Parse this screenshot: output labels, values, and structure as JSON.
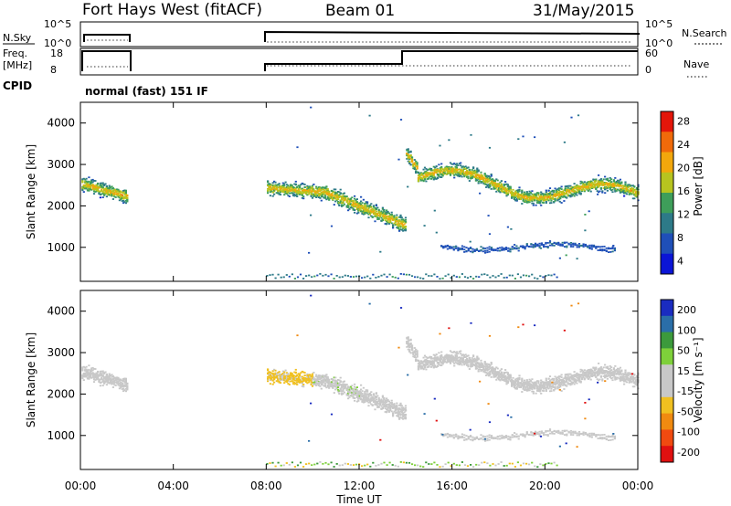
{
  "header": {
    "station": "Fort Hays West (fitACF)",
    "beam": "Beam 01",
    "date": "31/May/2015"
  },
  "top_panels": {
    "nsky_label": "N.Sky",
    "nsky_ticks": [
      "10^5",
      "10^0"
    ],
    "nsearch_label": "N.Search",
    "nsearch_ticks": [
      "10^5",
      "10^0"
    ],
    "freq_label_1": "Freq.",
    "freq_label_2": "[MHz]",
    "freq_ticks": [
      "18",
      "8"
    ],
    "nave_label": "Nave",
    "nave_ticks": [
      "60",
      "0"
    ],
    "cpid_label": "CPID",
    "cpid_text": "normal (fast) 151 IF"
  },
  "chart_data": [
    {
      "type": "heatmap",
      "title": "",
      "ylabel": "Slant Range [km]",
      "xlabel": "",
      "xlim": [
        "00:00",
        "24:00"
      ],
      "ylim": [
        180,
        4500
      ],
      "yticks": [
        "4000",
        "3000",
        "2000",
        "1000"
      ],
      "colorbar": {
        "label": "Power [dB]",
        "ticks": [
          "28",
          "24",
          "20",
          "16",
          "12",
          "8",
          "4"
        ],
        "range": [
          0,
          30
        ],
        "colors": [
          "#0b15d6",
          "#1f4fb8",
          "#2d7a88",
          "#3e9e5a",
          "#b7c41f",
          "#f2a70c",
          "#f06a0a",
          "#e4160a"
        ]
      },
      "series": [
        {
          "time_start": "00:00",
          "time_end": "02:00",
          "range_center_start": 2550,
          "range_center_end": 2250,
          "typical_power_db": 16
        },
        {
          "time_start": "08:00",
          "time_end": "14:00",
          "range_center_start": 2450,
          "range_center_end": 1550,
          "typical_power_db": 12
        },
        {
          "time_start": "14:00",
          "time_end": "24:00",
          "range_center_start": 2900,
          "range_center_end": 2600,
          "typical_power_db": 14
        },
        {
          "time_start": "15:30",
          "time_end": "23:00",
          "range_center_start": 1100,
          "range_center_end": 1100,
          "typical_power_db": 6
        }
      ]
    },
    {
      "type": "heatmap",
      "title": "",
      "ylabel": "Slant Range [km]",
      "xlabel": "Time UT",
      "xlim": [
        "00:00",
        "24:00"
      ],
      "ylim": [
        180,
        4500
      ],
      "yticks": [
        "4000",
        "3000",
        "2000",
        "1000"
      ],
      "xticks": [
        "00:00",
        "04:00",
        "08:00",
        "12:00",
        "16:00",
        "20:00",
        "00:00"
      ],
      "colorbar": {
        "label": "Velocity [m s⁻¹]",
        "ticks": [
          "200",
          "100",
          "50",
          "15",
          "-15",
          "-50",
          "-100",
          "-200"
        ],
        "range": [
          -250,
          250
        ],
        "colors": [
          "#e01010",
          "#f04a10",
          "#f08a10",
          "#f0c020",
          "#c8c8c8",
          "#c8c8c8",
          "#7ed03a",
          "#3c9a3c",
          "#2a6ea8",
          "#1a2cc0"
        ]
      },
      "series": [
        {
          "time_start": "00:00",
          "time_end": "02:00",
          "typical_velocity_ms": 0
        },
        {
          "time_start": "08:00",
          "time_end": "10:00",
          "typical_velocity_ms": -60
        },
        {
          "time_start": "10:00",
          "time_end": "12:00",
          "typical_velocity_ms": 45
        },
        {
          "time_start": "12:00",
          "time_end": "14:00",
          "typical_velocity_ms": 0
        },
        {
          "time_start": "14:00",
          "time_end": "24:00",
          "typical_velocity_ms": 0
        }
      ]
    }
  ]
}
